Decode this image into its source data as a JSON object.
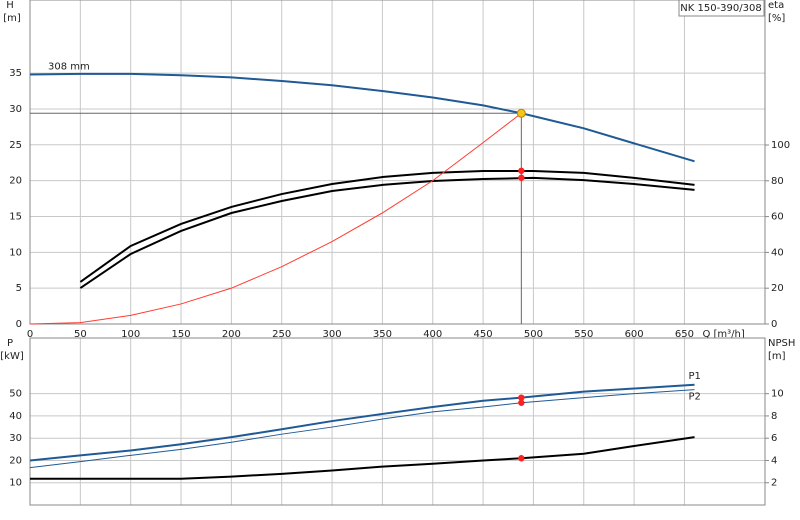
{
  "chart_data": [
    {
      "type": "line",
      "model_label": "NK 150-390/308",
      "annotation": "308 mm",
      "y_label": "H",
      "y_unit": "[m]",
      "y2_label": "eta",
      "y2_unit": "[%]",
      "x_label": "Q [m³/h]",
      "xlim": [
        0,
        730
      ],
      "xticks": [
        0,
        50,
        100,
        150,
        200,
        250,
        300,
        350,
        400,
        450,
        500,
        550,
        600,
        650
      ],
      "ylim": [
        0,
        45.2
      ],
      "yticks": [
        0,
        5,
        10,
        15,
        20,
        25,
        30,
        35
      ],
      "y2lim": [
        0,
        181
      ],
      "y2ticks": [
        0,
        20,
        40,
        60,
        80,
        100
      ],
      "grid": true,
      "duty_point": {
        "x": 488,
        "y": 29.4,
        "color": "#f5c518"
      },
      "series": [
        {
          "color": "#1f5a96",
          "width": 2,
          "axis": "y",
          "x": [
            0,
            50,
            100,
            150,
            200,
            250,
            300,
            350,
            400,
            450,
            488,
            500,
            550,
            600,
            660
          ],
          "values": [
            34.8,
            34.9,
            34.9,
            34.7,
            34.4,
            33.9,
            33.3,
            32.5,
            31.6,
            30.5,
            29.4,
            29.0,
            27.3,
            25.2,
            22.7
          ]
        },
        {
          "color": "#000000",
          "width": 2,
          "axis": "y2",
          "x": [
            50,
            100,
            150,
            200,
            250,
            300,
            350,
            400,
            450,
            500,
            550,
            600,
            660
          ],
          "values": [
            23.5,
            43.6,
            55.9,
            65.4,
            72.6,
            78.2,
            82.1,
            84.4,
            85.5,
            85.5,
            84.4,
            81.6,
            77.7
          ]
        },
        {
          "color": "#000000",
          "width": 2,
          "axis": "y2",
          "x": [
            50,
            100,
            150,
            200,
            250,
            300,
            350,
            400,
            450,
            500,
            550,
            600,
            660
          ],
          "values": [
            20.1,
            39.1,
            52,
            62,
            68.7,
            74.3,
            77.7,
            79.9,
            81,
            81.6,
            80.4,
            78.2,
            74.9
          ]
        },
        {
          "color": "#ff3b30",
          "width": 1,
          "axis": "y",
          "x": [
            0,
            50,
            100,
            150,
            200,
            250,
            300,
            350,
            400,
            450,
            488
          ],
          "values": [
            0,
            0.2,
            1.2,
            2.8,
            5,
            8,
            11.5,
            15.5,
            20,
            25.3,
            29.4
          ]
        }
      ],
      "points": [
        {
          "x": 488,
          "y": 85.6,
          "axis": "y2",
          "color": "#ff2020"
        },
        {
          "x": 488,
          "y": 81.7,
          "axis": "y2",
          "color": "#ff2020"
        }
      ]
    },
    {
      "type": "line",
      "y_label": "P",
      "y_unit": "[kW]",
      "y2_label": "NPSH",
      "y2_unit": "[m]",
      "xlim": [
        0,
        730
      ],
      "ylim": [
        0,
        75
      ],
      "yticks": [
        10,
        20,
        30,
        40,
        50
      ],
      "y2lim": [
        0,
        15
      ],
      "y2ticks": [
        2,
        4,
        6,
        8,
        10
      ],
      "grid": true,
      "series": [
        {
          "name": "P1",
          "color": "#1f5a96",
          "width": 2,
          "axis": "y",
          "x": [
            0,
            50,
            100,
            150,
            200,
            250,
            300,
            350,
            400,
            450,
            488,
            550,
            600,
            660
          ],
          "values": [
            20,
            22.3,
            24.5,
            27.3,
            30.5,
            34,
            37.7,
            40.9,
            44,
            46.8,
            48.2,
            50.9,
            52.3,
            54
          ]
        },
        {
          "name": "P2",
          "color": "#1f5a96",
          "width": 1,
          "axis": "y",
          "x": [
            0,
            50,
            100,
            150,
            200,
            250,
            300,
            350,
            400,
            450,
            488,
            550,
            600,
            660
          ],
          "values": [
            16.8,
            19.5,
            22.3,
            25,
            28.2,
            31.8,
            35,
            38.6,
            41.8,
            44,
            45.9,
            48.2,
            50,
            51.8
          ]
        },
        {
          "color": "#000000",
          "width": 2,
          "axis": "y2",
          "x": [
            0,
            50,
            100,
            150,
            200,
            250,
            300,
            350,
            400,
            450,
            488,
            550,
            600,
            660
          ],
          "values": [
            2.36,
            2.36,
            2.36,
            2.36,
            2.55,
            2.8,
            3.1,
            3.45,
            3.7,
            4,
            4.2,
            4.6,
            5.3,
            6.1
          ]
        }
      ],
      "points": [
        {
          "x": 488,
          "y": 48.2,
          "axis": "y",
          "color": "#ff2020"
        },
        {
          "x": 488,
          "y": 45.9,
          "axis": "y",
          "color": "#ff2020"
        },
        {
          "x": 488,
          "y": 4.2,
          "axis": "y2",
          "color": "#ff2020"
        }
      ]
    }
  ]
}
